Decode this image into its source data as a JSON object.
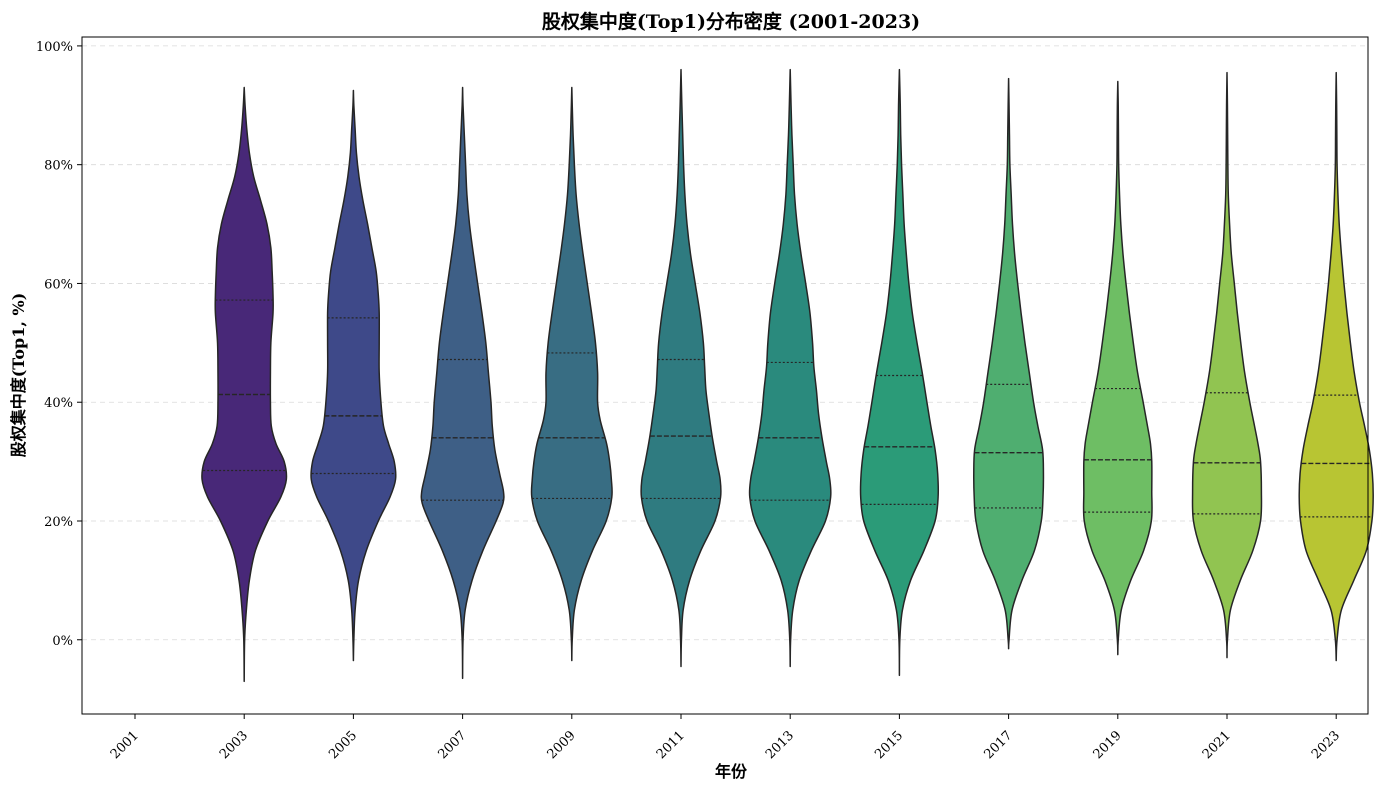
{
  "chart_data": {
    "type": "violin",
    "title": "股权集中度(Top1)分布密度 (2001-2023)",
    "xlabel": "年份",
    "ylabel": "股权集中度(Top1, %)",
    "ylim": [
      -12.5,
      101.5
    ],
    "yticks": [
      0,
      20,
      40,
      60,
      80,
      100
    ],
    "ytick_labels": [
      "0%",
      "20%",
      "40%",
      "60%",
      "80%",
      "100%"
    ],
    "y_grid": true,
    "categories": [
      "2001",
      "2003",
      "2005",
      "2007",
      "2009",
      "2011",
      "2013",
      "2015",
      "2017",
      "2019",
      "2021",
      "2023"
    ],
    "violins": [
      {
        "year": "2001",
        "color": "",
        "min": null,
        "max": null,
        "q1": null,
        "median": null,
        "q3": null,
        "profile": []
      },
      {
        "year": "2003",
        "color": "#482878",
        "min": -7,
        "max": 93,
        "q1": 28.5,
        "median": 41.3,
        "q3": 57.2,
        "profile": [
          [
            -7,
            0.0
          ],
          [
            0,
            0.01
          ],
          [
            5,
            0.05
          ],
          [
            10,
            0.12
          ],
          [
            15,
            0.26
          ],
          [
            20,
            0.55
          ],
          [
            24,
            0.85
          ],
          [
            27,
            0.98
          ],
          [
            30,
            0.93
          ],
          [
            33,
            0.74
          ],
          [
            36,
            0.63
          ],
          [
            40,
            0.61
          ],
          [
            45,
            0.61
          ],
          [
            50,
            0.62
          ],
          [
            55,
            0.67
          ],
          [
            58,
            0.67
          ],
          [
            62,
            0.65
          ],
          [
            66,
            0.62
          ],
          [
            70,
            0.53
          ],
          [
            74,
            0.38
          ],
          [
            78,
            0.22
          ],
          [
            82,
            0.12
          ],
          [
            86,
            0.06
          ],
          [
            90,
            0.02
          ],
          [
            93,
            0.0
          ]
        ]
      },
      {
        "year": "2005",
        "color": "#3e4989",
        "min": -3.5,
        "max": 92.5,
        "q1": 28.0,
        "median": 37.7,
        "q3": 54.2,
        "profile": [
          [
            -3.5,
            0.0
          ],
          [
            0,
            0.01
          ],
          [
            5,
            0.04
          ],
          [
            10,
            0.12
          ],
          [
            15,
            0.3
          ],
          [
            20,
            0.58
          ],
          [
            24,
            0.85
          ],
          [
            27,
            0.98
          ],
          [
            30,
            0.95
          ],
          [
            33,
            0.82
          ],
          [
            36,
            0.7
          ],
          [
            40,
            0.64
          ],
          [
            45,
            0.6
          ],
          [
            50,
            0.6
          ],
          [
            55,
            0.6
          ],
          [
            58,
            0.58
          ],
          [
            62,
            0.53
          ],
          [
            66,
            0.43
          ],
          [
            70,
            0.33
          ],
          [
            74,
            0.22
          ],
          [
            78,
            0.13
          ],
          [
            82,
            0.07
          ],
          [
            86,
            0.04
          ],
          [
            90,
            0.01
          ],
          [
            92.5,
            0.0
          ]
        ]
      },
      {
        "year": "2007",
        "color": "#3e5f86",
        "min": -6.5,
        "max": 93,
        "q1": 23.5,
        "median": 34.0,
        "q3": 47.2,
        "profile": [
          [
            -6.5,
            0.0
          ],
          [
            0,
            0.01
          ],
          [
            5,
            0.06
          ],
          [
            10,
            0.22
          ],
          [
            15,
            0.47
          ],
          [
            20,
            0.78
          ],
          [
            23,
            0.94
          ],
          [
            25,
            0.95
          ],
          [
            28,
            0.86
          ],
          [
            32,
            0.75
          ],
          [
            36,
            0.69
          ],
          [
            40,
            0.66
          ],
          [
            45,
            0.6
          ],
          [
            50,
            0.54
          ],
          [
            55,
            0.45
          ],
          [
            60,
            0.35
          ],
          [
            65,
            0.25
          ],
          [
            70,
            0.16
          ],
          [
            75,
            0.1
          ],
          [
            80,
            0.07
          ],
          [
            85,
            0.04
          ],
          [
            90,
            0.01
          ],
          [
            93,
            0.0
          ]
        ]
      },
      {
        "year": "2009",
        "color": "#386d83",
        "min": -3.5,
        "max": 93,
        "q1": 23.8,
        "median": 34.0,
        "q3": 48.3,
        "profile": [
          [
            -3.5,
            0.0
          ],
          [
            0,
            0.01
          ],
          [
            5,
            0.06
          ],
          [
            10,
            0.22
          ],
          [
            15,
            0.48
          ],
          [
            20,
            0.8
          ],
          [
            24,
            0.93
          ],
          [
            27,
            0.92
          ],
          [
            30,
            0.88
          ],
          [
            33,
            0.81
          ],
          [
            37,
            0.66
          ],
          [
            40,
            0.6
          ],
          [
            45,
            0.6
          ],
          [
            50,
            0.55
          ],
          [
            55,
            0.46
          ],
          [
            60,
            0.36
          ],
          [
            65,
            0.26
          ],
          [
            70,
            0.17
          ],
          [
            75,
            0.1
          ],
          [
            80,
            0.06
          ],
          [
            85,
            0.03
          ],
          [
            90,
            0.01
          ],
          [
            93,
            0.0
          ]
        ]
      },
      {
        "year": "2011",
        "color": "#2f7b80",
        "min": -4.5,
        "max": 96,
        "q1": 23.8,
        "median": 34.3,
        "q3": 47.2,
        "profile": [
          [
            -4.5,
            0.0
          ],
          [
            0,
            0.01
          ],
          [
            5,
            0.05
          ],
          [
            10,
            0.2
          ],
          [
            15,
            0.46
          ],
          [
            20,
            0.79
          ],
          [
            24,
            0.92
          ],
          [
            27,
            0.91
          ],
          [
            30,
            0.83
          ],
          [
            34,
            0.73
          ],
          [
            38,
            0.65
          ],
          [
            42,
            0.58
          ],
          [
            46,
            0.55
          ],
          [
            50,
            0.52
          ],
          [
            55,
            0.44
          ],
          [
            60,
            0.33
          ],
          [
            65,
            0.22
          ],
          [
            70,
            0.14
          ],
          [
            75,
            0.09
          ],
          [
            80,
            0.06
          ],
          [
            85,
            0.04
          ],
          [
            90,
            0.02
          ],
          [
            96,
            0.0
          ]
        ]
      },
      {
        "year": "2013",
        "color": "#2a8a7d",
        "min": -4.5,
        "max": 96,
        "q1": 23.5,
        "median": 34.0,
        "q3": 46.7,
        "profile": [
          [
            -4.5,
            0.0
          ],
          [
            0,
            0.01
          ],
          [
            5,
            0.06
          ],
          [
            10,
            0.21
          ],
          [
            15,
            0.49
          ],
          [
            20,
            0.82
          ],
          [
            24,
            0.94
          ],
          [
            27,
            0.92
          ],
          [
            30,
            0.84
          ],
          [
            34,
            0.74
          ],
          [
            38,
            0.66
          ],
          [
            42,
            0.61
          ],
          [
            46,
            0.55
          ],
          [
            50,
            0.52
          ],
          [
            55,
            0.46
          ],
          [
            60,
            0.36
          ],
          [
            65,
            0.25
          ],
          [
            70,
            0.16
          ],
          [
            75,
            0.1
          ],
          [
            80,
            0.07
          ],
          [
            85,
            0.04
          ],
          [
            90,
            0.02
          ],
          [
            96,
            0.0
          ]
        ]
      },
      {
        "year": "2015",
        "color": "#2b9b78",
        "min": -6,
        "max": 96,
        "q1": 22.8,
        "median": 32.5,
        "q3": 44.5,
        "profile": [
          [
            -6,
            0.0
          ],
          [
            0,
            0.01
          ],
          [
            5,
            0.07
          ],
          [
            10,
            0.26
          ],
          [
            15,
            0.57
          ],
          [
            20,
            0.83
          ],
          [
            24,
            0.9
          ],
          [
            28,
            0.89
          ],
          [
            32,
            0.83
          ],
          [
            36,
            0.73
          ],
          [
            40,
            0.64
          ],
          [
            45,
            0.53
          ],
          [
            50,
            0.41
          ],
          [
            55,
            0.3
          ],
          [
            60,
            0.22
          ],
          [
            65,
            0.16
          ],
          [
            70,
            0.11
          ],
          [
            75,
            0.08
          ],
          [
            80,
            0.05
          ],
          [
            85,
            0.03
          ],
          [
            90,
            0.02
          ],
          [
            96,
            0.0
          ]
        ]
      },
      {
        "year": "2017",
        "color": "#4fae70",
        "min": -1.5,
        "max": 94.5,
        "q1": 22.2,
        "median": 31.5,
        "q3": 43.0,
        "profile": [
          [
            -1.5,
            0.0
          ],
          [
            0,
            0.01
          ],
          [
            5,
            0.08
          ],
          [
            10,
            0.31
          ],
          [
            15,
            0.6
          ],
          [
            20,
            0.76
          ],
          [
            24,
            0.8
          ],
          [
            28,
            0.81
          ],
          [
            32,
            0.79
          ],
          [
            36,
            0.68
          ],
          [
            40,
            0.58
          ],
          [
            45,
            0.48
          ],
          [
            50,
            0.38
          ],
          [
            55,
            0.29
          ],
          [
            60,
            0.21
          ],
          [
            65,
            0.14
          ],
          [
            70,
            0.09
          ],
          [
            75,
            0.06
          ],
          [
            80,
            0.03
          ],
          [
            85,
            0.02
          ],
          [
            90,
            0.01
          ],
          [
            94.5,
            0.0
          ]
        ]
      },
      {
        "year": "2019",
        "color": "#6ebe64",
        "min": -2.5,
        "max": 94,
        "q1": 21.5,
        "median": 30.3,
        "q3": 42.3,
        "profile": [
          [
            -2.5,
            0.0
          ],
          [
            0,
            0.01
          ],
          [
            5,
            0.08
          ],
          [
            10,
            0.3
          ],
          [
            15,
            0.6
          ],
          [
            20,
            0.78
          ],
          [
            25,
            0.79
          ],
          [
            30,
            0.79
          ],
          [
            33,
            0.76
          ],
          [
            36,
            0.69
          ],
          [
            40,
            0.59
          ],
          [
            45,
            0.46
          ],
          [
            50,
            0.36
          ],
          [
            55,
            0.27
          ],
          [
            60,
            0.19
          ],
          [
            65,
            0.12
          ],
          [
            70,
            0.07
          ],
          [
            75,
            0.04
          ],
          [
            80,
            0.02
          ],
          [
            85,
            0.015
          ],
          [
            90,
            0.01
          ],
          [
            94,
            0.0
          ]
        ]
      },
      {
        "year": "2021",
        "color": "#91c451",
        "min": -3,
        "max": 95.5,
        "q1": 21.2,
        "median": 29.8,
        "q3": 41.6,
        "profile": [
          [
            -3,
            0.0
          ],
          [
            0,
            0.01
          ],
          [
            5,
            0.08
          ],
          [
            10,
            0.31
          ],
          [
            15,
            0.6
          ],
          [
            20,
            0.78
          ],
          [
            25,
            0.8
          ],
          [
            30,
            0.78
          ],
          [
            33,
            0.72
          ],
          [
            36,
            0.64
          ],
          [
            40,
            0.53
          ],
          [
            45,
            0.41
          ],
          [
            50,
            0.32
          ],
          [
            55,
            0.24
          ],
          [
            60,
            0.17
          ],
          [
            65,
            0.1
          ],
          [
            70,
            0.06
          ],
          [
            75,
            0.03
          ],
          [
            80,
            0.02
          ],
          [
            85,
            0.015
          ],
          [
            90,
            0.01
          ],
          [
            95.5,
            0.0
          ]
        ]
      },
      {
        "year": "2023",
        "color": "#b8c533",
        "min": -3.5,
        "max": 95.5,
        "q1": 20.7,
        "median": 29.7,
        "q3": 41.2,
        "profile": [
          [
            -3.5,
            0.0
          ],
          [
            0,
            0.02
          ],
          [
            5,
            0.12
          ],
          [
            10,
            0.41
          ],
          [
            15,
            0.7
          ],
          [
            20,
            0.83
          ],
          [
            24,
            0.86
          ],
          [
            28,
            0.84
          ],
          [
            32,
            0.77
          ],
          [
            36,
            0.66
          ],
          [
            40,
            0.54
          ],
          [
            45,
            0.42
          ],
          [
            50,
            0.33
          ],
          [
            55,
            0.25
          ],
          [
            60,
            0.18
          ],
          [
            65,
            0.12
          ],
          [
            70,
            0.07
          ],
          [
            75,
            0.04
          ],
          [
            80,
            0.02
          ],
          [
            85,
            0.015
          ],
          [
            90,
            0.01
          ],
          [
            95.5,
            0.0
          ]
        ]
      }
    ]
  }
}
